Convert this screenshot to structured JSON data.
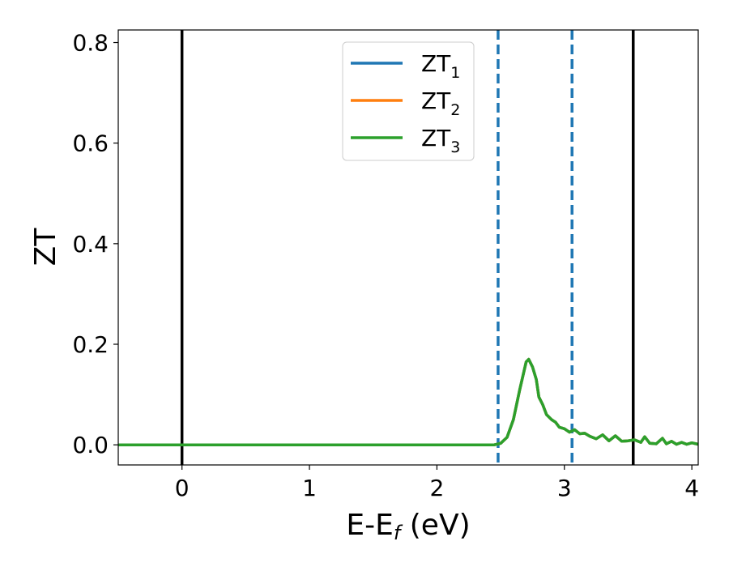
{
  "chart_data": {
    "type": "line",
    "xlabel": {
      "main": "E-E",
      "sub": "f",
      "suffix": " (eV)"
    },
    "ylabel": "ZT",
    "xlim": [
      -0.5,
      4.05
    ],
    "ylim": [
      -0.04,
      0.825
    ],
    "xticks": [
      0,
      1,
      2,
      3,
      4
    ],
    "xtick_labels": [
      "0",
      "1",
      "2",
      "3",
      "4"
    ],
    "yticks": [
      0.0,
      0.2,
      0.4,
      0.6,
      0.8
    ],
    "ytick_labels": [
      "0.0",
      "0.2",
      "0.4",
      "0.6",
      "0.8"
    ],
    "grid": false,
    "legend_position": "top-center",
    "vlines_solid": [
      0.0,
      3.54
    ],
    "vlines_dashed": [
      2.48,
      3.06
    ],
    "vline_solid_color": "#000000",
    "vline_dashed_color": "#1f77b4",
    "x": [
      -0.5,
      0.0,
      0.5,
      1.0,
      1.5,
      2.0,
      2.3,
      2.45,
      2.5,
      2.55,
      2.6,
      2.65,
      2.7,
      2.72,
      2.75,
      2.78,
      2.8,
      2.83,
      2.86,
      2.9,
      2.93,
      2.96,
      3.0,
      3.04,
      3.08,
      3.12,
      3.16,
      3.2,
      3.25,
      3.3,
      3.35,
      3.4,
      3.45,
      3.5,
      3.55,
      3.6,
      3.63,
      3.67,
      3.72,
      3.77,
      3.8,
      3.84,
      3.88,
      3.92,
      3.96,
      4.0,
      4.05
    ],
    "series": [
      {
        "name": "ZT",
        "name_sub": "1",
        "color": "#1f77b4",
        "values": [
          0,
          0,
          0,
          0,
          0,
          0,
          0,
          0,
          0.003,
          0.015,
          0.05,
          0.11,
          0.165,
          0.17,
          0.155,
          0.13,
          0.095,
          0.08,
          0.06,
          0.05,
          0.045,
          0.035,
          0.032,
          0.025,
          0.03,
          0.022,
          0.023,
          0.017,
          0.012,
          0.02,
          0.008,
          0.018,
          0.007,
          0.008,
          0.01,
          0.005,
          0.016,
          0.003,
          0.002,
          0.013,
          0.002,
          0.007,
          0.001,
          0.005,
          0.001,
          0.004,
          0.001
        ]
      },
      {
        "name": "ZT",
        "name_sub": "2",
        "color": "#ff7f0e",
        "values": [
          0,
          0,
          0,
          0,
          0,
          0,
          0,
          0,
          0.003,
          0.015,
          0.05,
          0.11,
          0.165,
          0.17,
          0.155,
          0.13,
          0.095,
          0.08,
          0.06,
          0.05,
          0.045,
          0.035,
          0.032,
          0.025,
          0.03,
          0.022,
          0.023,
          0.017,
          0.012,
          0.02,
          0.008,
          0.018,
          0.007,
          0.008,
          0.01,
          0.005,
          0.016,
          0.003,
          0.002,
          0.013,
          0.002,
          0.007,
          0.001,
          0.005,
          0.001,
          0.004,
          0.001
        ]
      },
      {
        "name": "ZT",
        "name_sub": "3",
        "color": "#2ca02c",
        "values": [
          0,
          0,
          0,
          0,
          0,
          0,
          0,
          0,
          0.003,
          0.015,
          0.05,
          0.11,
          0.165,
          0.17,
          0.155,
          0.13,
          0.095,
          0.08,
          0.06,
          0.05,
          0.045,
          0.035,
          0.032,
          0.025,
          0.03,
          0.022,
          0.023,
          0.017,
          0.012,
          0.02,
          0.008,
          0.018,
          0.007,
          0.008,
          0.01,
          0.005,
          0.016,
          0.003,
          0.002,
          0.013,
          0.002,
          0.007,
          0.001,
          0.005,
          0.001,
          0.004,
          0.001
        ]
      }
    ]
  }
}
